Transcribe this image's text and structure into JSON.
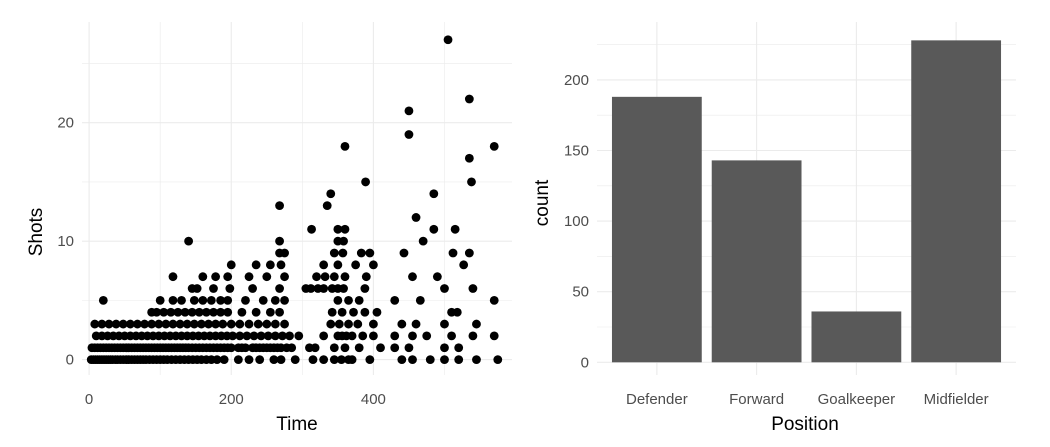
{
  "chart_data": [
    {
      "type": "scatter",
      "xlabel": "Time",
      "ylabel": "Shots",
      "xlim": [
        -10,
        595
      ],
      "ylim": [
        -1.3,
        28.5
      ],
      "xticks": [
        0,
        200,
        400
      ],
      "yticks": [
        0,
        10,
        20
      ],
      "grid": true,
      "point_color": "#000000",
      "points": [
        [
          3,
          0
        ],
        [
          6,
          0
        ],
        [
          9,
          0
        ],
        [
          12,
          0
        ],
        [
          15,
          0
        ],
        [
          18,
          0
        ],
        [
          21,
          0
        ],
        [
          24,
          0
        ],
        [
          27,
          0
        ],
        [
          30,
          0
        ],
        [
          33,
          0
        ],
        [
          37,
          0
        ],
        [
          40,
          0
        ],
        [
          44,
          0
        ],
        [
          48,
          0
        ],
        [
          52,
          0
        ],
        [
          56,
          0
        ],
        [
          60,
          0
        ],
        [
          64,
          0
        ],
        [
          68,
          0
        ],
        [
          72,
          0
        ],
        [
          76,
          0
        ],
        [
          80,
          0
        ],
        [
          85,
          0
        ],
        [
          90,
          0
        ],
        [
          95,
          0
        ],
        [
          100,
          0
        ],
        [
          105,
          0
        ],
        [
          110,
          0
        ],
        [
          116,
          0
        ],
        [
          122,
          0
        ],
        [
          128,
          0
        ],
        [
          134,
          0
        ],
        [
          140,
          0
        ],
        [
          146,
          0
        ],
        [
          152,
          0
        ],
        [
          158,
          0
        ],
        [
          165,
          0
        ],
        [
          172,
          0
        ],
        [
          180,
          0
        ],
        [
          190,
          0
        ],
        [
          210,
          0
        ],
        [
          225,
          0
        ],
        [
          240,
          0
        ],
        [
          260,
          0
        ],
        [
          270,
          0
        ],
        [
          290,
          0
        ],
        [
          315,
          0
        ],
        [
          330,
          0
        ],
        [
          345,
          0
        ],
        [
          355,
          0
        ],
        [
          365,
          0
        ],
        [
          370,
          0
        ],
        [
          395,
          0
        ],
        [
          440,
          0
        ],
        [
          455,
          0
        ],
        [
          480,
          0
        ],
        [
          500,
          0
        ],
        [
          520,
          0
        ],
        [
          545,
          0
        ],
        [
          575,
          0
        ],
        [
          4,
          1
        ],
        [
          8,
          1
        ],
        [
          12,
          1
        ],
        [
          16,
          1
        ],
        [
          20,
          1
        ],
        [
          24,
          1
        ],
        [
          28,
          1
        ],
        [
          32,
          1
        ],
        [
          36,
          1
        ],
        [
          40,
          1
        ],
        [
          44,
          1
        ],
        [
          48,
          1
        ],
        [
          52,
          1
        ],
        [
          56,
          1
        ],
        [
          60,
          1
        ],
        [
          64,
          1
        ],
        [
          68,
          1
        ],
        [
          72,
          1
        ],
        [
          76,
          1
        ],
        [
          80,
          1
        ],
        [
          84,
          1
        ],
        [
          88,
          1
        ],
        [
          92,
          1
        ],
        [
          96,
          1
        ],
        [
          100,
          1
        ],
        [
          104,
          1
        ],
        [
          108,
          1
        ],
        [
          112,
          1
        ],
        [
          116,
          1
        ],
        [
          120,
          1
        ],
        [
          124,
          1
        ],
        [
          128,
          1
        ],
        [
          132,
          1
        ],
        [
          136,
          1
        ],
        [
          140,
          1
        ],
        [
          145,
          1
        ],
        [
          150,
          1
        ],
        [
          155,
          1
        ],
        [
          160,
          1
        ],
        [
          165,
          1
        ],
        [
          170,
          1
        ],
        [
          175,
          1
        ],
        [
          180,
          1
        ],
        [
          185,
          1
        ],
        [
          190,
          1
        ],
        [
          195,
          1
        ],
        [
          200,
          1
        ],
        [
          210,
          1
        ],
        [
          215,
          1
        ],
        [
          220,
          1
        ],
        [
          230,
          1
        ],
        [
          235,
          1
        ],
        [
          240,
          1
        ],
        [
          245,
          1
        ],
        [
          250,
          1
        ],
        [
          255,
          1
        ],
        [
          260,
          1
        ],
        [
          265,
          1
        ],
        [
          270,
          1
        ],
        [
          278,
          1
        ],
        [
          285,
          1
        ],
        [
          310,
          1
        ],
        [
          318,
          1
        ],
        [
          345,
          1
        ],
        [
          360,
          1
        ],
        [
          380,
          1
        ],
        [
          410,
          1
        ],
        [
          430,
          1
        ],
        [
          450,
          1
        ],
        [
          500,
          1
        ],
        [
          520,
          1
        ],
        [
          10,
          2
        ],
        [
          18,
          2
        ],
        [
          26,
          2
        ],
        [
          34,
          2
        ],
        [
          42,
          2
        ],
        [
          50,
          2
        ],
        [
          58,
          2
        ],
        [
          66,
          2
        ],
        [
          74,
          2
        ],
        [
          82,
          2
        ],
        [
          90,
          2
        ],
        [
          98,
          2
        ],
        [
          106,
          2
        ],
        [
          114,
          2
        ],
        [
          122,
          2
        ],
        [
          130,
          2
        ],
        [
          138,
          2
        ],
        [
          146,
          2
        ],
        [
          154,
          2
        ],
        [
          162,
          2
        ],
        [
          170,
          2
        ],
        [
          178,
          2
        ],
        [
          186,
          2
        ],
        [
          194,
          2
        ],
        [
          202,
          2
        ],
        [
          212,
          2
        ],
        [
          222,
          2
        ],
        [
          232,
          2
        ],
        [
          242,
          2
        ],
        [
          252,
          2
        ],
        [
          262,
          2
        ],
        [
          272,
          2
        ],
        [
          282,
          2
        ],
        [
          295,
          2
        ],
        [
          330,
          2
        ],
        [
          350,
          2
        ],
        [
          356,
          2
        ],
        [
          362,
          2
        ],
        [
          370,
          2
        ],
        [
          385,
          2
        ],
        [
          400,
          2
        ],
        [
          430,
          2
        ],
        [
          455,
          2
        ],
        [
          475,
          2
        ],
        [
          510,
          2
        ],
        [
          540,
          2
        ],
        [
          570,
          2
        ],
        [
          8,
          3
        ],
        [
          18,
          3
        ],
        [
          28,
          3
        ],
        [
          38,
          3
        ],
        [
          48,
          3
        ],
        [
          58,
          3
        ],
        [
          68,
          3
        ],
        [
          78,
          3
        ],
        [
          88,
          3
        ],
        [
          98,
          3
        ],
        [
          108,
          3
        ],
        [
          118,
          3
        ],
        [
          128,
          3
        ],
        [
          138,
          3
        ],
        [
          148,
          3
        ],
        [
          158,
          3
        ],
        [
          168,
          3
        ],
        [
          178,
          3
        ],
        [
          188,
          3
        ],
        [
          200,
          3
        ],
        [
          212,
          3
        ],
        [
          225,
          3
        ],
        [
          238,
          3
        ],
        [
          250,
          3
        ],
        [
          262,
          3
        ],
        [
          275,
          3
        ],
        [
          340,
          3
        ],
        [
          352,
          3
        ],
        [
          365,
          3
        ],
        [
          378,
          3
        ],
        [
          400,
          3
        ],
        [
          440,
          3
        ],
        [
          460,
          3
        ],
        [
          500,
          3
        ],
        [
          545,
          3
        ],
        [
          88,
          4
        ],
        [
          95,
          4
        ],
        [
          105,
          4
        ],
        [
          115,
          4
        ],
        [
          125,
          4
        ],
        [
          135,
          4
        ],
        [
          145,
          4
        ],
        [
          155,
          4
        ],
        [
          165,
          4
        ],
        [
          175,
          4
        ],
        [
          185,
          4
        ],
        [
          195,
          4
        ],
        [
          215,
          4
        ],
        [
          235,
          4
        ],
        [
          255,
          4
        ],
        [
          268,
          4
        ],
        [
          342,
          4
        ],
        [
          356,
          4
        ],
        [
          372,
          4
        ],
        [
          388,
          4
        ],
        [
          405,
          4
        ],
        [
          510,
          4
        ],
        [
          518,
          4
        ],
        [
          20,
          5
        ],
        [
          100,
          5
        ],
        [
          118,
          5
        ],
        [
          130,
          5
        ],
        [
          148,
          5
        ],
        [
          160,
          5
        ],
        [
          172,
          5
        ],
        [
          185,
          5
        ],
        [
          195,
          5
        ],
        [
          220,
          5
        ],
        [
          245,
          5
        ],
        [
          262,
          5
        ],
        [
          275,
          5
        ],
        [
          350,
          5
        ],
        [
          365,
          5
        ],
        [
          380,
          5
        ],
        [
          430,
          5
        ],
        [
          466,
          5
        ],
        [
          570,
          5
        ],
        [
          145,
          6
        ],
        [
          152,
          6
        ],
        [
          175,
          6
        ],
        [
          198,
          6
        ],
        [
          230,
          6
        ],
        [
          268,
          6
        ],
        [
          305,
          6
        ],
        [
          312,
          6
        ],
        [
          322,
          6
        ],
        [
          330,
          6
        ],
        [
          342,
          6
        ],
        [
          350,
          6
        ],
        [
          358,
          6
        ],
        [
          388,
          6
        ],
        [
          500,
          6
        ],
        [
          540,
          6
        ],
        [
          118,
          7
        ],
        [
          160,
          7
        ],
        [
          178,
          7
        ],
        [
          195,
          7
        ],
        [
          225,
          7
        ],
        [
          250,
          7
        ],
        [
          275,
          7
        ],
        [
          320,
          7
        ],
        [
          332,
          7
        ],
        [
          345,
          7
        ],
        [
          360,
          7
        ],
        [
          390,
          7
        ],
        [
          455,
          7
        ],
        [
          490,
          7
        ],
        [
          200,
          8
        ],
        [
          235,
          8
        ],
        [
          255,
          8
        ],
        [
          270,
          8
        ],
        [
          330,
          8
        ],
        [
          350,
          8
        ],
        [
          375,
          8
        ],
        [
          400,
          8
        ],
        [
          527,
          8
        ],
        [
          268,
          9
        ],
        [
          275,
          9
        ],
        [
          345,
          9
        ],
        [
          357,
          9
        ],
        [
          383,
          9
        ],
        [
          395,
          9
        ],
        [
          443,
          9
        ],
        [
          512,
          9
        ],
        [
          535,
          9
        ],
        [
          140,
          10
        ],
        [
          268,
          10
        ],
        [
          350,
          10
        ],
        [
          358,
          10
        ],
        [
          470,
          10
        ],
        [
          313,
          11
        ],
        [
          350,
          11
        ],
        [
          360,
          11
        ],
        [
          485,
          11
        ],
        [
          515,
          11
        ],
        [
          460,
          12
        ],
        [
          268,
          13
        ],
        [
          335,
          13
        ],
        [
          340,
          14
        ],
        [
          485,
          14
        ],
        [
          389,
          15
        ],
        [
          538,
          15
        ],
        [
          535,
          17
        ],
        [
          360,
          18
        ],
        [
          570,
          18
        ],
        [
          450,
          19
        ],
        [
          450,
          21
        ],
        [
          535,
          22
        ],
        [
          505,
          27
        ]
      ]
    },
    {
      "type": "bar",
      "xlabel": "Position",
      "ylabel": "count",
      "categories": [
        "Defender",
        "Forward",
        "Goalkeeper",
        "Midfielder"
      ],
      "values": [
        188,
        143,
        36,
        228
      ],
      "ylim": [
        -9,
        241
      ],
      "yticks": [
        0,
        50,
        100,
        150,
        200
      ],
      "grid": true,
      "bar_color": "#595959"
    }
  ],
  "colors": {
    "grid": "#ebebeb",
    "background": "#ffffff",
    "tick_text": "#4d4d4d"
  }
}
